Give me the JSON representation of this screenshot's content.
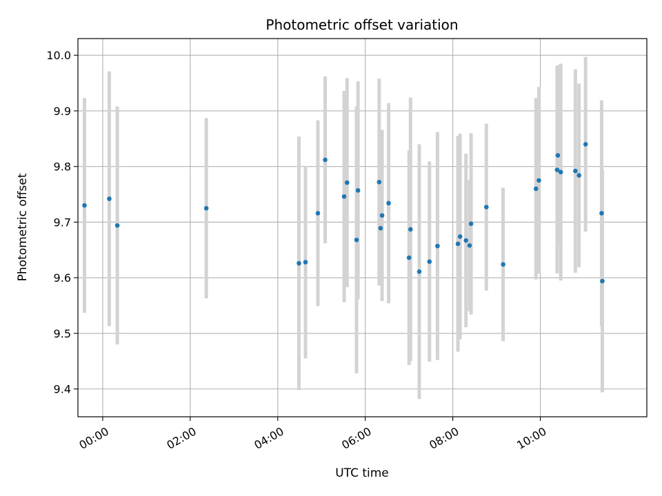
{
  "chart_data": {
    "type": "scatter",
    "title": "Photometric offset variation",
    "xlabel": "UTC time",
    "ylabel": "Photometric offset",
    "xlim": [
      "23:26",
      "12:26"
    ],
    "ylim": [
      9.35,
      10.03
    ],
    "xticks": [
      "00:00",
      "02:00",
      "04:00",
      "06:00",
      "08:00",
      "10:00"
    ],
    "yticks": [
      "9.4",
      "9.5",
      "9.6",
      "9.7",
      "9.8",
      "9.9",
      "10.0"
    ],
    "grid": true,
    "marker_color": "#1f77b4",
    "errorbar_color": "#d3d3d3",
    "points": [
      {
        "x": "23:35",
        "y": 9.73,
        "err": 0.193
      },
      {
        "x": "00:09",
        "y": 9.742,
        "err": 0.229
      },
      {
        "x": "00:20",
        "y": 9.694,
        "err": 0.214
      },
      {
        "x": "02:22",
        "y": 9.725,
        "err": 0.162
      },
      {
        "x": "04:29",
        "y": 9.626,
        "err": 0.228
      },
      {
        "x": "04:38",
        "y": 9.628,
        "err": 0.173
      },
      {
        "x": "04:55",
        "y": 9.716,
        "err": 0.167
      },
      {
        "x": "05:05",
        "y": 9.812,
        "err": 0.15
      },
      {
        "x": "05:31",
        "y": 9.746,
        "err": 0.19
      },
      {
        "x": "05:35",
        "y": 9.771,
        "err": 0.188
      },
      {
        "x": "05:48",
        "y": 9.668,
        "err": 0.24
      },
      {
        "x": "05:50",
        "y": 9.757,
        "err": 0.196
      },
      {
        "x": "06:19",
        "y": 9.772,
        "err": 0.186
      },
      {
        "x": "06:21",
        "y": 9.689,
        "err": 0.103
      },
      {
        "x": "06:23",
        "y": 9.712,
        "err": 0.154
      },
      {
        "x": "06:32",
        "y": 9.734,
        "err": 0.18
      },
      {
        "x": "07:00",
        "y": 9.636,
        "err": 0.193
      },
      {
        "x": "07:02",
        "y": 9.687,
        "err": 0.237
      },
      {
        "x": "07:14",
        "y": 9.611,
        "err": 0.229
      },
      {
        "x": "07:28",
        "y": 9.629,
        "err": 0.18
      },
      {
        "x": "07:39",
        "y": 9.657,
        "err": 0.205
      },
      {
        "x": "08:07",
        "y": 9.661,
        "err": 0.194
      },
      {
        "x": "08:10",
        "y": 9.674,
        "err": 0.185
      },
      {
        "x": "08:18",
        "y": 9.667,
        "err": 0.156
      },
      {
        "x": "08:23",
        "y": 9.658,
        "err": 0.118
      },
      {
        "x": "08:25",
        "y": 9.697,
        "err": 0.163
      },
      {
        "x": "08:46",
        "y": 9.727,
        "err": 0.15
      },
      {
        "x": "09:09",
        "y": 9.624,
        "err": 0.138
      },
      {
        "x": "09:54",
        "y": 9.76,
        "err": 0.163
      },
      {
        "x": "09:58",
        "y": 9.775,
        "err": 0.168
      },
      {
        "x": "10:23",
        "y": 9.794,
        "err": 0.186
      },
      {
        "x": "10:24",
        "y": 9.82,
        "err": 0.162
      },
      {
        "x": "10:28",
        "y": 9.79,
        "err": 0.195
      },
      {
        "x": "10:48",
        "y": 9.792,
        "err": 0.183
      },
      {
        "x": "10:53",
        "y": 9.784,
        "err": 0.165
      },
      {
        "x": "11:02",
        "y": 9.84,
        "err": 0.157
      },
      {
        "x": "11:24",
        "y": 9.716,
        "err": 0.203
      },
      {
        "x": "11:25",
        "y": 9.594,
        "err": 0.2
      }
    ]
  }
}
